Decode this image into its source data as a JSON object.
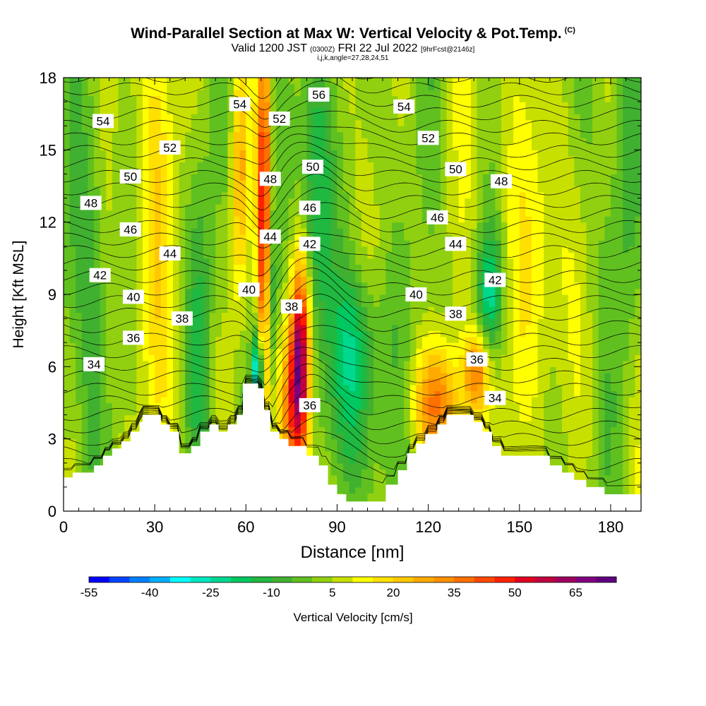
{
  "header": {
    "title": "Wind-Parallel Section at Max W: Vertical Velocity & Pot.Temp.",
    "title_tag": "(C)",
    "subtitle_a": "Valid 1200 JST",
    "subtitle_b": "(0300Z)",
    "subtitle_c": "FRI 22 Jul 2022",
    "subtitle_d": "[9hrFcst@2146z]",
    "subsubtitle": "i,j,k,angle=27,28,24,51"
  },
  "chart_data": {
    "type": "heatmap",
    "xlabel": "Distance [nm]",
    "ylabel": "Height [Kft MSL]",
    "xlim": [
      0,
      190
    ],
    "ylim": [
      0,
      18
    ],
    "xticks": [
      0,
      30,
      60,
      90,
      120,
      150,
      180
    ],
    "yticks": [
      0,
      3,
      6,
      9,
      12,
      15,
      18
    ],
    "colorbar": {
      "label": "Vertical Velocity [cm/s]",
      "tick_labels": [
        "-55",
        "-40",
        "-25",
        "-10",
        "5",
        "20",
        "35",
        "50",
        "65"
      ],
      "levels": [
        -55,
        -50,
        -45,
        -40,
        -35,
        -30,
        -25,
        -20,
        -15,
        -10,
        -5,
        0,
        5,
        10,
        15,
        20,
        25,
        30,
        35,
        40,
        45,
        50,
        55,
        60,
        65,
        70
      ],
      "colors": [
        "#0000ff",
        "#0044ff",
        "#0080ff",
        "#00b0ff",
        "#00ffff",
        "#00e8c0",
        "#00d890",
        "#00c860",
        "#20b840",
        "#40b030",
        "#60c020",
        "#90d010",
        "#c8e000",
        "#ffff00",
        "#ffe000",
        "#ffc800",
        "#ffaa00",
        "#ff9000",
        "#ff7000",
        "#ff4800",
        "#ff2000",
        "#e00020",
        "#c00040",
        "#a00060",
        "#800080",
        "#600080"
      ]
    },
    "terrain": [
      [
        0,
        1.4
      ],
      [
        3,
        1.4
      ],
      [
        3,
        1.6
      ],
      [
        10,
        1.6
      ],
      [
        10,
        1.9
      ],
      [
        13,
        1.9
      ],
      [
        13,
        2.3
      ],
      [
        16,
        2.3
      ],
      [
        16,
        2.6
      ],
      [
        19,
        2.6
      ],
      [
        19,
        2.9
      ],
      [
        22,
        2.9
      ],
      [
        22,
        3.3
      ],
      [
        25,
        3.3
      ],
      [
        25,
        3.7
      ],
      [
        26,
        3.7
      ],
      [
        26,
        4.0
      ],
      [
        32,
        4.0
      ],
      [
        32,
        3.6
      ],
      [
        35,
        3.6
      ],
      [
        35,
        3.3
      ],
      [
        38,
        3.3
      ],
      [
        38,
        2.4
      ],
      [
        42,
        2.4
      ],
      [
        42,
        2.7
      ],
      [
        45,
        2.7
      ],
      [
        45,
        3.3
      ],
      [
        48,
        3.3
      ],
      [
        48,
        3.6
      ],
      [
        51,
        3.6
      ],
      [
        51,
        3.3
      ],
      [
        54,
        3.3
      ],
      [
        54,
        3.6
      ],
      [
        57,
        3.6
      ],
      [
        57,
        4.0
      ],
      [
        59,
        4.0
      ],
      [
        59,
        5.3
      ],
      [
        64,
        5.3
      ],
      [
        64,
        5.1
      ],
      [
        66,
        5.1
      ],
      [
        66,
        4.2
      ],
      [
        68,
        4.2
      ],
      [
        68,
        3.3
      ],
      [
        71,
        3.3
      ],
      [
        71,
        3.0
      ],
      [
        74,
        3.0
      ],
      [
        74,
        2.7
      ],
      [
        80,
        2.7
      ],
      [
        80,
        2.3
      ],
      [
        84,
        2.3
      ],
      [
        84,
        1.9
      ],
      [
        87,
        1.9
      ],
      [
        87,
        1.1
      ],
      [
        90,
        1.1
      ],
      [
        90,
        0.7
      ],
      [
        93,
        0.7
      ],
      [
        93,
        0.4
      ],
      [
        106,
        0.4
      ],
      [
        106,
        1.1
      ],
      [
        110,
        1.1
      ],
      [
        110,
        1.7
      ],
      [
        113,
        1.7
      ],
      [
        113,
        2.4
      ],
      [
        116,
        2.4
      ],
      [
        116,
        2.8
      ],
      [
        119,
        2.8
      ],
      [
        119,
        3.2
      ],
      [
        123,
        3.2
      ],
      [
        123,
        3.6
      ],
      [
        126,
        3.6
      ],
      [
        126,
        4.0
      ],
      [
        135,
        4.0
      ],
      [
        135,
        3.7
      ],
      [
        138,
        3.7
      ],
      [
        138,
        3.3
      ],
      [
        141,
        3.3
      ],
      [
        141,
        2.7
      ],
      [
        144,
        2.7
      ],
      [
        144,
        2.3
      ],
      [
        160,
        2.3
      ],
      [
        160,
        1.9
      ],
      [
        164,
        1.9
      ],
      [
        164,
        1.6
      ],
      [
        168,
        1.6
      ],
      [
        168,
        1.3
      ],
      [
        172,
        1.3
      ],
      [
        172,
        1.0
      ],
      [
        178,
        1.0
      ],
      [
        178,
        0.7
      ],
      [
        190,
        0.7
      ]
    ],
    "isentrope_labels": [
      {
        "text": "54",
        "x": 13,
        "y": 16.2
      },
      {
        "text": "54",
        "x": 58,
        "y": 16.9
      },
      {
        "text": "56",
        "x": 84,
        "y": 17.3
      },
      {
        "text": "54",
        "x": 112,
        "y": 16.8
      },
      {
        "text": "52",
        "x": 35,
        "y": 15.1
      },
      {
        "text": "52",
        "x": 71,
        "y": 16.3
      },
      {
        "text": "52",
        "x": 120,
        "y": 15.5
      },
      {
        "text": "50",
        "x": 22,
        "y": 13.9
      },
      {
        "text": "50",
        "x": 82,
        "y": 14.3
      },
      {
        "text": "50",
        "x": 129,
        "y": 14.2
      },
      {
        "text": "48",
        "x": 144,
        "y": 13.7
      },
      {
        "text": "48",
        "x": 9,
        "y": 12.8
      },
      {
        "text": "48",
        "x": 68,
        "y": 13.8
      },
      {
        "text": "46",
        "x": 22,
        "y": 11.7
      },
      {
        "text": "46",
        "x": 81,
        "y": 12.6
      },
      {
        "text": "46",
        "x": 123,
        "y": 12.2
      },
      {
        "text": "44",
        "x": 35,
        "y": 10.7
      },
      {
        "text": "44",
        "x": 68,
        "y": 11.4
      },
      {
        "text": "42",
        "x": 81,
        "y": 11.1
      },
      {
        "text": "44",
        "x": 129,
        "y": 11.1
      },
      {
        "text": "42",
        "x": 12,
        "y": 9.8
      },
      {
        "text": "42",
        "x": 142,
        "y": 9.6
      },
      {
        "text": "40",
        "x": 23,
        "y": 8.9
      },
      {
        "text": "40",
        "x": 61,
        "y": 9.2
      },
      {
        "text": "40",
        "x": 116,
        "y": 9.0
      },
      {
        "text": "38",
        "x": 39,
        "y": 8.0
      },
      {
        "text": "38",
        "x": 75,
        "y": 8.5
      },
      {
        "text": "38",
        "x": 129,
        "y": 8.2
      },
      {
        "text": "36",
        "x": 23,
        "y": 7.2
      },
      {
        "text": "36",
        "x": 136,
        "y": 6.3
      },
      {
        "text": "34",
        "x": 10,
        "y": 6.1
      },
      {
        "text": "36",
        "x": 81,
        "y": 4.4
      },
      {
        "text": "34",
        "x": 142,
        "y": 4.7
      }
    ],
    "w_features": [
      {
        "x": 66,
        "y": 12,
        "sx": 1.6,
        "sy": 5.5,
        "value": 52
      },
      {
        "x": 78,
        "y": 6.5,
        "sx": 2.2,
        "sy": 3.0,
        "value": 55
      },
      {
        "x": 75,
        "y": 4.5,
        "sx": 3,
        "sy": 2.5,
        "value": 28
      },
      {
        "x": 64,
        "y": 5.8,
        "sx": 1.0,
        "sy": 1.2,
        "value": -50
      },
      {
        "x": 68,
        "y": 9,
        "sx": 1.5,
        "sy": 3,
        "value": -20
      },
      {
        "x": 83,
        "y": 13,
        "sx": 4,
        "sy": 5,
        "value": -28
      },
      {
        "x": 96,
        "y": 7,
        "sx": 6,
        "sy": 2.2,
        "value": -20
      },
      {
        "x": 140,
        "y": 9,
        "sx": 3,
        "sy": 1.8,
        "value": -25
      },
      {
        "x": 123,
        "y": 4.5,
        "sx": 6,
        "sy": 1.6,
        "value": 30
      },
      {
        "x": 136,
        "y": 5.8,
        "sx": 3,
        "sy": 1.2,
        "value": 28
      },
      {
        "x": 10,
        "y": 9,
        "sx": 4,
        "sy": 6,
        "value": -12
      },
      {
        "x": 45,
        "y": 7,
        "sx": 3,
        "sy": 5,
        "value": -12
      },
      {
        "x": 58,
        "y": 14,
        "sx": 2,
        "sy": 4,
        "value": 24
      },
      {
        "x": 96,
        "y": 3,
        "sx": 6,
        "sy": 2.5,
        "value": -14
      },
      {
        "x": 160,
        "y": 10,
        "sx": 6,
        "sy": 5,
        "value": 12
      },
      {
        "x": 185,
        "y": 14,
        "sx": 4,
        "sy": 6,
        "value": -10
      },
      {
        "x": 30,
        "y": 13,
        "sx": 4,
        "sy": 6,
        "value": 10
      }
    ]
  }
}
